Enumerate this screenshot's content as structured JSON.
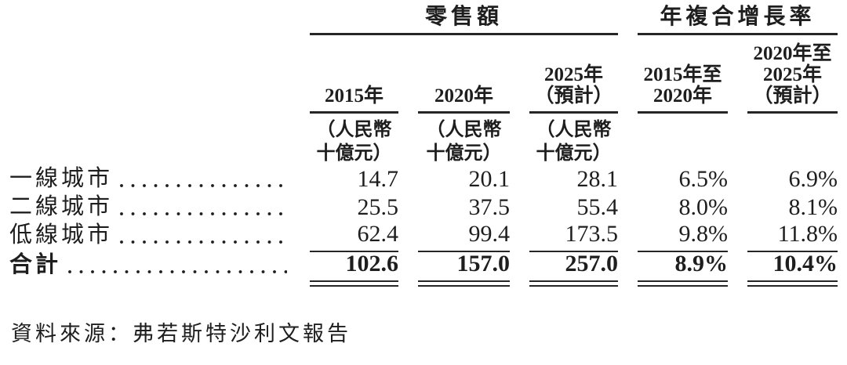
{
  "table": {
    "group_headers": [
      {
        "label": "零售額",
        "span_columns": 3
      },
      {
        "label": "年複合增長率",
        "span_columns": 2
      }
    ],
    "columns": [
      {
        "header_lines": [
          "2015年"
        ],
        "unit_lines": [
          "（人民幣",
          "十億元）"
        ]
      },
      {
        "header_lines": [
          "2020年"
        ],
        "unit_lines": [
          "（人民幣",
          "十億元）"
        ]
      },
      {
        "header_lines": [
          "2025年",
          "（預計）"
        ],
        "unit_lines": [
          "（人民幣",
          "十億元）"
        ]
      },
      {
        "header_lines": [
          "2015年至",
          "2020年"
        ],
        "unit_lines": []
      },
      {
        "header_lines": [
          "2020年至",
          "2025年",
          "（預計）"
        ],
        "unit_lines": []
      }
    ],
    "rows": [
      {
        "label": "一線城市",
        "values": [
          "14.7",
          "20.1",
          "28.1",
          "6.5%",
          "6.9%"
        ]
      },
      {
        "label": "二線城市",
        "values": [
          "25.5",
          "37.5",
          "55.4",
          "8.0%",
          "8.1%"
        ]
      },
      {
        "label": "低線城市",
        "values": [
          "62.4",
          "99.4",
          "173.5",
          "9.8%",
          "11.8%"
        ]
      }
    ],
    "total_row": {
      "label": "合計",
      "values": [
        "102.6",
        "157.0",
        "257.0",
        "8.9%",
        "10.4%"
      ]
    }
  },
  "footer": {
    "source": "資料來源：弗若斯特沙利文報告"
  },
  "colors": {
    "text": "#1e1e1e",
    "rule": "#262626",
    "background": "#ffffff"
  }
}
